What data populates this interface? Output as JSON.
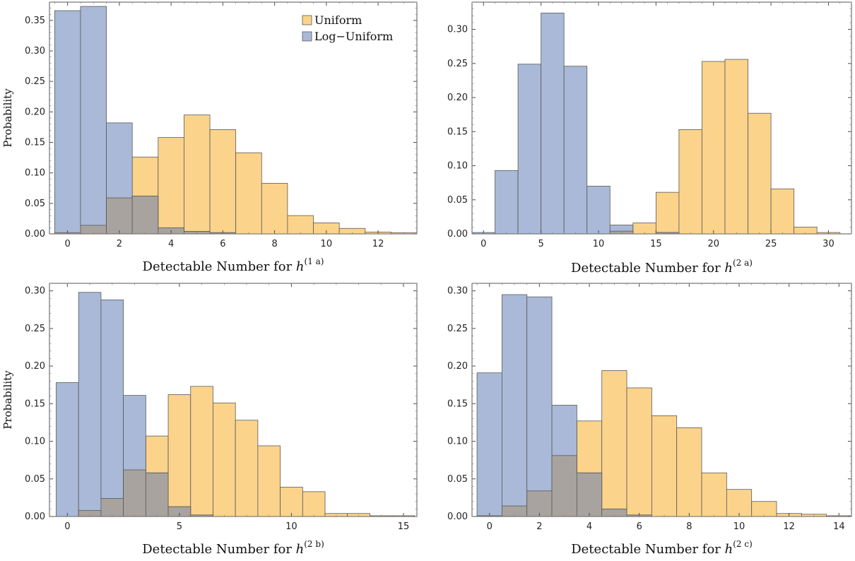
{
  "colors": {
    "uniform": "#fbd38a",
    "log_uniform": "#a9b9d7",
    "overlap": "#a8a39e",
    "bar_stroke": "#5a5a5a"
  },
  "chart_data": [
    {
      "type": "bar",
      "xlabel": "Detectable Number for h",
      "xlabel_sup": "(1 a)",
      "ylabel": "Probability",
      "xlim": [
        -0.7,
        13.5
      ],
      "ylim": [
        0,
        0.38
      ],
      "xticks": [
        0,
        2,
        4,
        6,
        8,
        10,
        12
      ],
      "yticks": [
        0.0,
        0.05,
        0.1,
        0.15,
        0.2,
        0.25,
        0.3,
        0.35
      ],
      "legend": {
        "position": "top-right",
        "entries": [
          "Uniform",
          "Log−Uniform"
        ]
      },
      "bin_width": 1,
      "series": [
        {
          "name": "Uniform",
          "x": [
            0,
            1,
            2,
            3,
            4,
            5,
            6,
            7,
            8,
            9,
            10,
            11,
            12,
            13
          ],
          "values": [
            0.002,
            0.014,
            0.059,
            0.126,
            0.158,
            0.195,
            0.171,
            0.133,
            0.083,
            0.03,
            0.018,
            0.009,
            0.003,
            0.002
          ]
        },
        {
          "name": "Log−Uniform",
          "x": [
            0,
            1,
            2,
            3,
            4,
            5,
            6
          ],
          "values": [
            0.366,
            0.373,
            0.182,
            0.062,
            0.01,
            0.004,
            0.002
          ]
        }
      ]
    },
    {
      "type": "bar",
      "xlabel": "Detectable Number for h",
      "xlabel_sup": "(2 a)",
      "ylabel": "",
      "xlim": [
        -1,
        32
      ],
      "ylim": [
        0,
        0.34
      ],
      "xticks": [
        0,
        5,
        10,
        15,
        20,
        25,
        30
      ],
      "yticks": [
        0.0,
        0.05,
        0.1,
        0.15,
        0.2,
        0.25,
        0.3
      ],
      "bin_width": 2,
      "series": [
        {
          "name": "Uniform",
          "x": [
            12,
            14,
            16,
            18,
            20,
            22,
            24,
            26,
            28,
            30
          ],
          "values": [
            0.004,
            0.016,
            0.061,
            0.153,
            0.253,
            0.256,
            0.177,
            0.066,
            0.01,
            0.002
          ]
        },
        {
          "name": "Log−Uniform",
          "x": [
            0,
            2,
            4,
            6,
            8,
            10,
            12,
            16
          ],
          "values": [
            0.002,
            0.093,
            0.249,
            0.324,
            0.246,
            0.07,
            0.013,
            0.002
          ]
        }
      ]
    },
    {
      "type": "bar",
      "xlabel": "Detectable Number for h",
      "xlabel_sup": "(2 b)",
      "ylabel": "Probability",
      "xlim": [
        -0.8,
        15.6
      ],
      "ylim": [
        0,
        0.31
      ],
      "xticks": [
        0,
        5,
        10,
        15
      ],
      "yticks": [
        0.0,
        0.05,
        0.1,
        0.15,
        0.2,
        0.25,
        0.3
      ],
      "bin_width": 1,
      "series": [
        {
          "name": "Uniform",
          "x": [
            1,
            2,
            3,
            4,
            5,
            6,
            7,
            8,
            9,
            10,
            11,
            12,
            13,
            14,
            15
          ],
          "values": [
            0.008,
            0.024,
            0.062,
            0.107,
            0.162,
            0.173,
            0.151,
            0.128,
            0.094,
            0.039,
            0.033,
            0.004,
            0.004,
            0.001,
            0.001
          ]
        },
        {
          "name": "Log−Uniform",
          "x": [
            0,
            1,
            2,
            3,
            4,
            5,
            6
          ],
          "values": [
            0.178,
            0.298,
            0.288,
            0.161,
            0.058,
            0.013,
            0.002
          ]
        }
      ]
    },
    {
      "type": "bar",
      "xlabel": "Detectable Number for h",
      "xlabel_sup": "(2 c)",
      "ylabel": "",
      "xlim": [
        -0.7,
        14.5
      ],
      "ylim": [
        0,
        0.31
      ],
      "xticks": [
        0,
        2,
        4,
        6,
        8,
        10,
        12,
        14
      ],
      "yticks": [
        0.0,
        0.05,
        0.1,
        0.15,
        0.2,
        0.25,
        0.3
      ],
      "bin_width": 1,
      "series": [
        {
          "name": "Uniform",
          "x": [
            0,
            1,
            2,
            3,
            4,
            5,
            6,
            7,
            8,
            9,
            10,
            11,
            12,
            13,
            14
          ],
          "values": [
            0.001,
            0.014,
            0.034,
            0.081,
            0.127,
            0.194,
            0.171,
            0.134,
            0.118,
            0.058,
            0.036,
            0.02,
            0.004,
            0.003,
            0.001
          ]
        },
        {
          "name": "Log−Uniform",
          "x": [
            0,
            1,
            2,
            3,
            4,
            5,
            6
          ],
          "values": [
            0.191,
            0.295,
            0.292,
            0.148,
            0.058,
            0.01,
            0.002
          ]
        }
      ]
    }
  ]
}
